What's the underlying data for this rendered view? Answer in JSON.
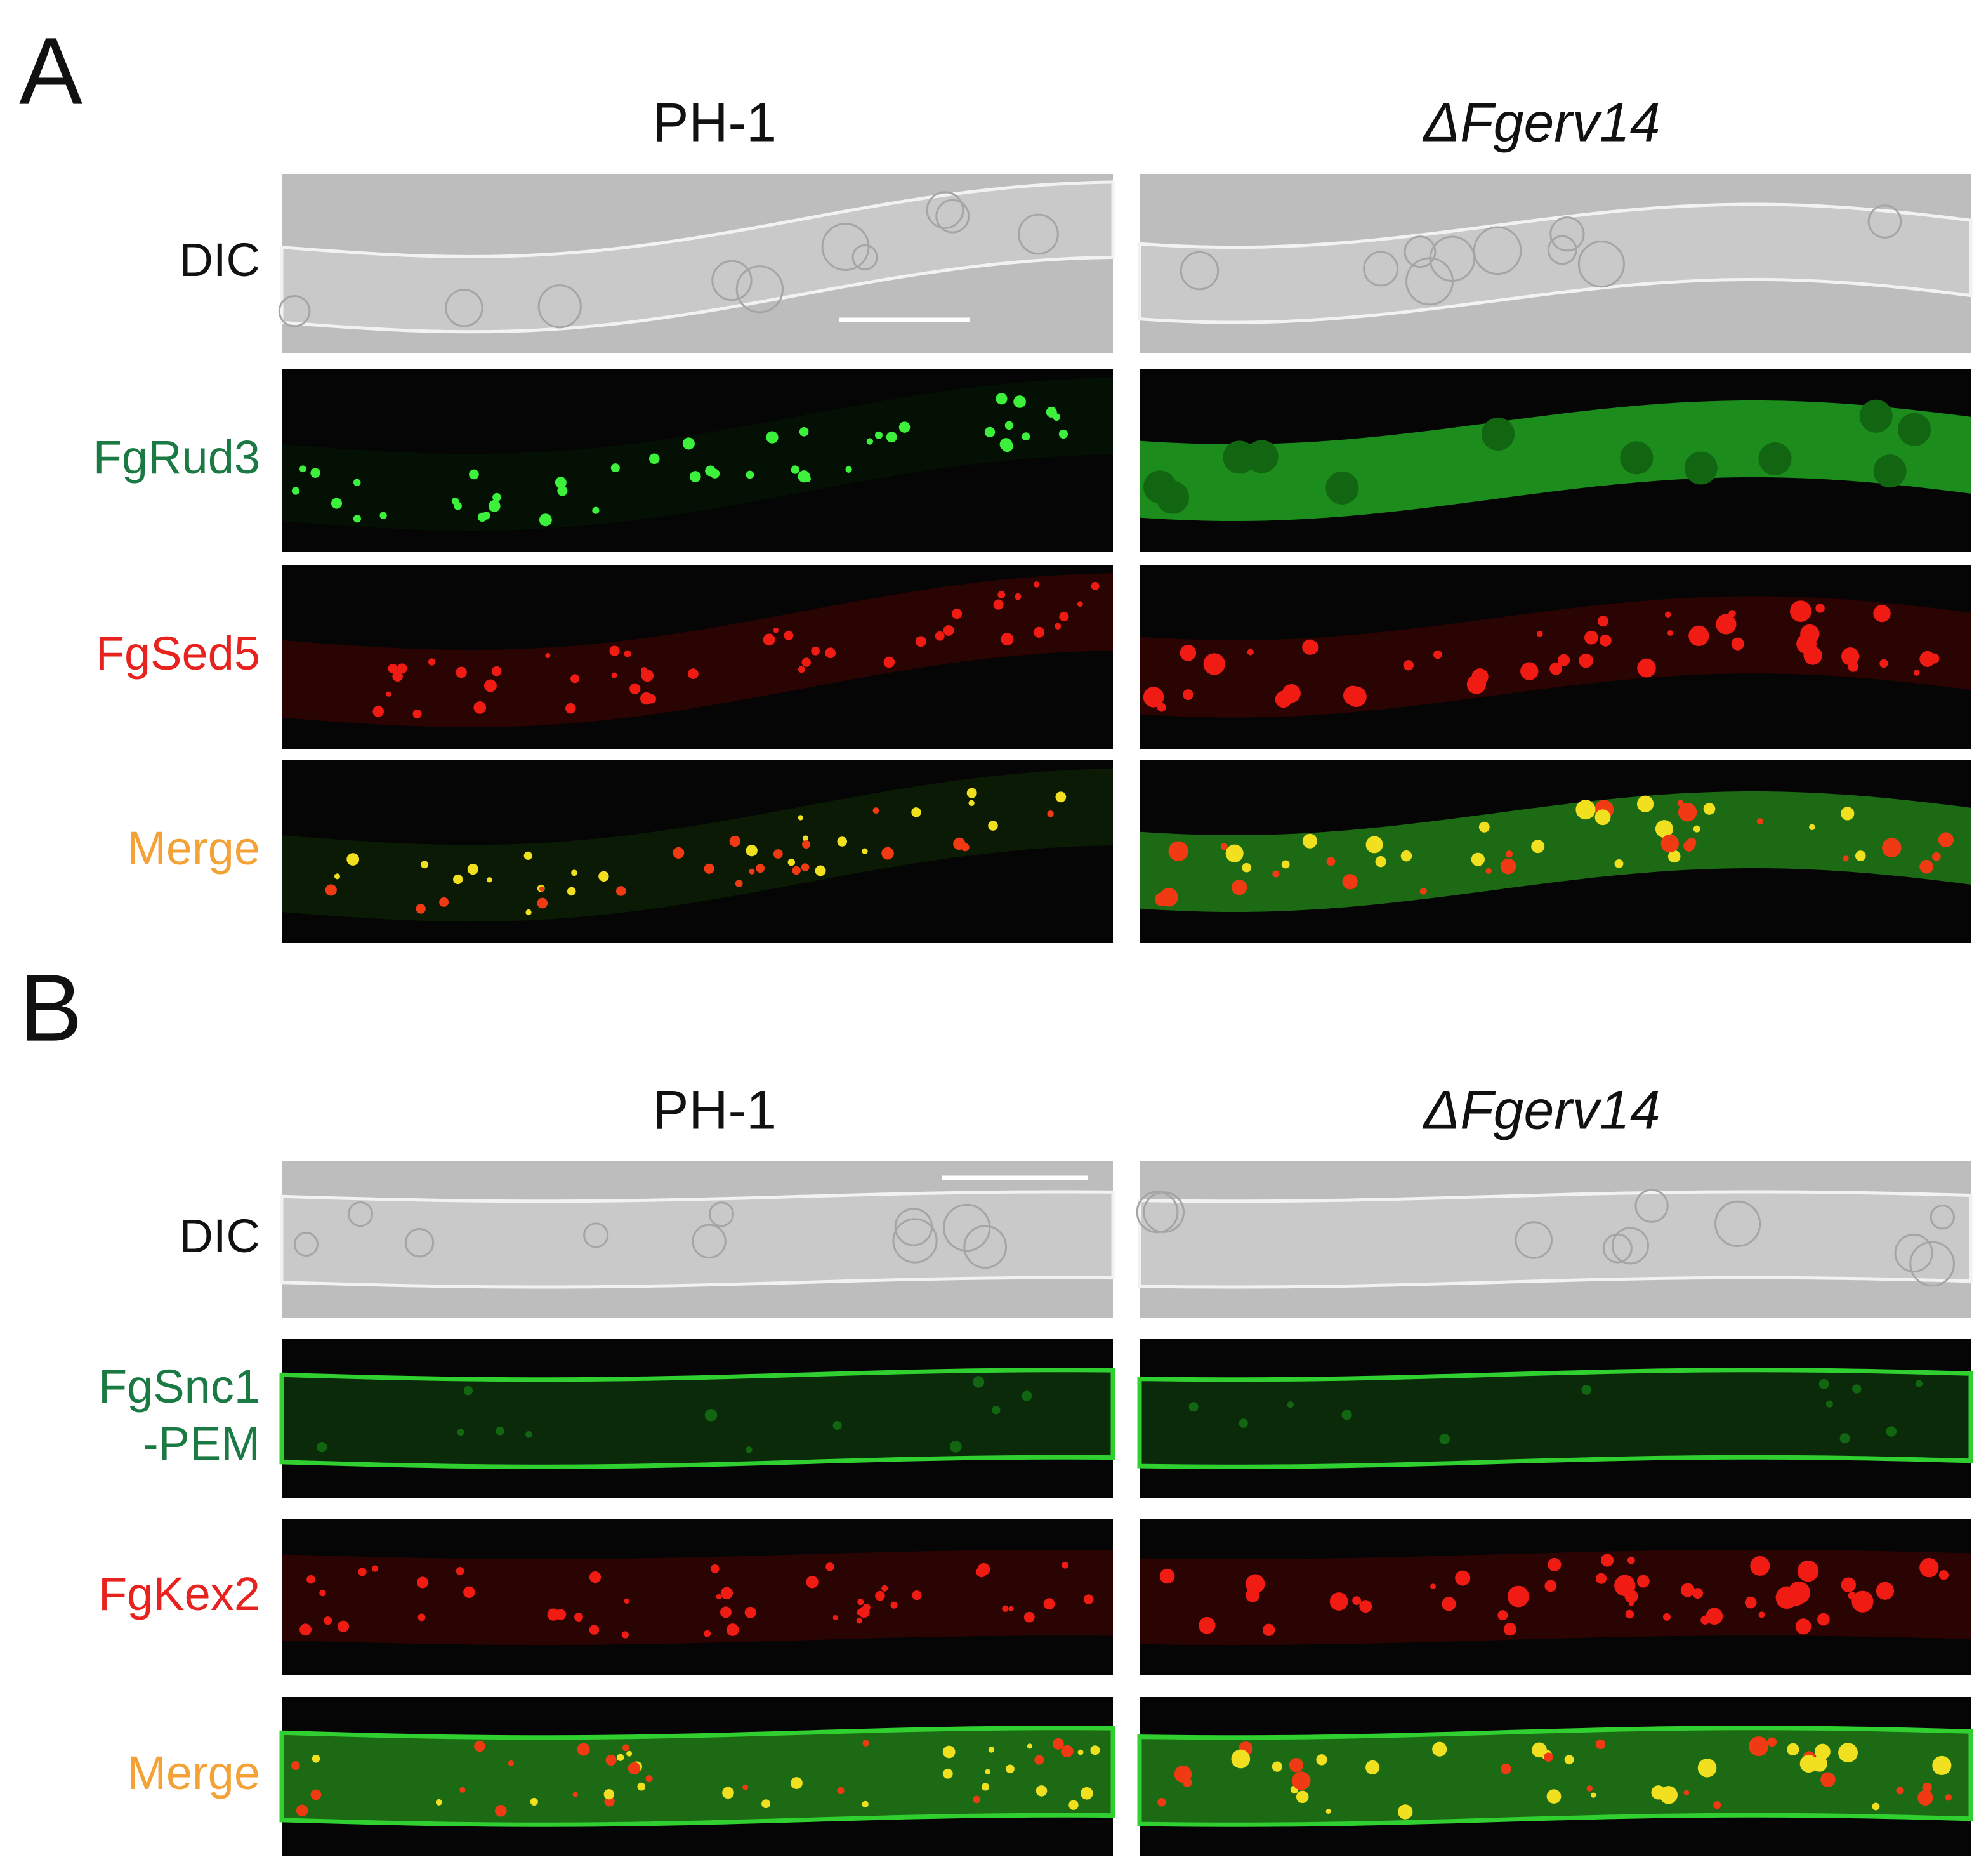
{
  "panels": [
    {
      "letter": "A",
      "columns": [
        "PH-1",
        "ΔFgerv14"
      ],
      "rows": [
        [
          "DIC"
        ],
        [
          "FgRud3"
        ],
        [
          "FgSed5"
        ],
        [
          "Merge"
        ]
      ]
    },
    {
      "letter": "B",
      "columns": [
        "PH-1",
        "ΔFgerv14"
      ],
      "rows": [
        [
          "DIC"
        ],
        [
          "FgSnc1",
          "-PEM"
        ],
        [
          "FgKex2"
        ],
        [
          "Merge"
        ]
      ]
    }
  ]
}
